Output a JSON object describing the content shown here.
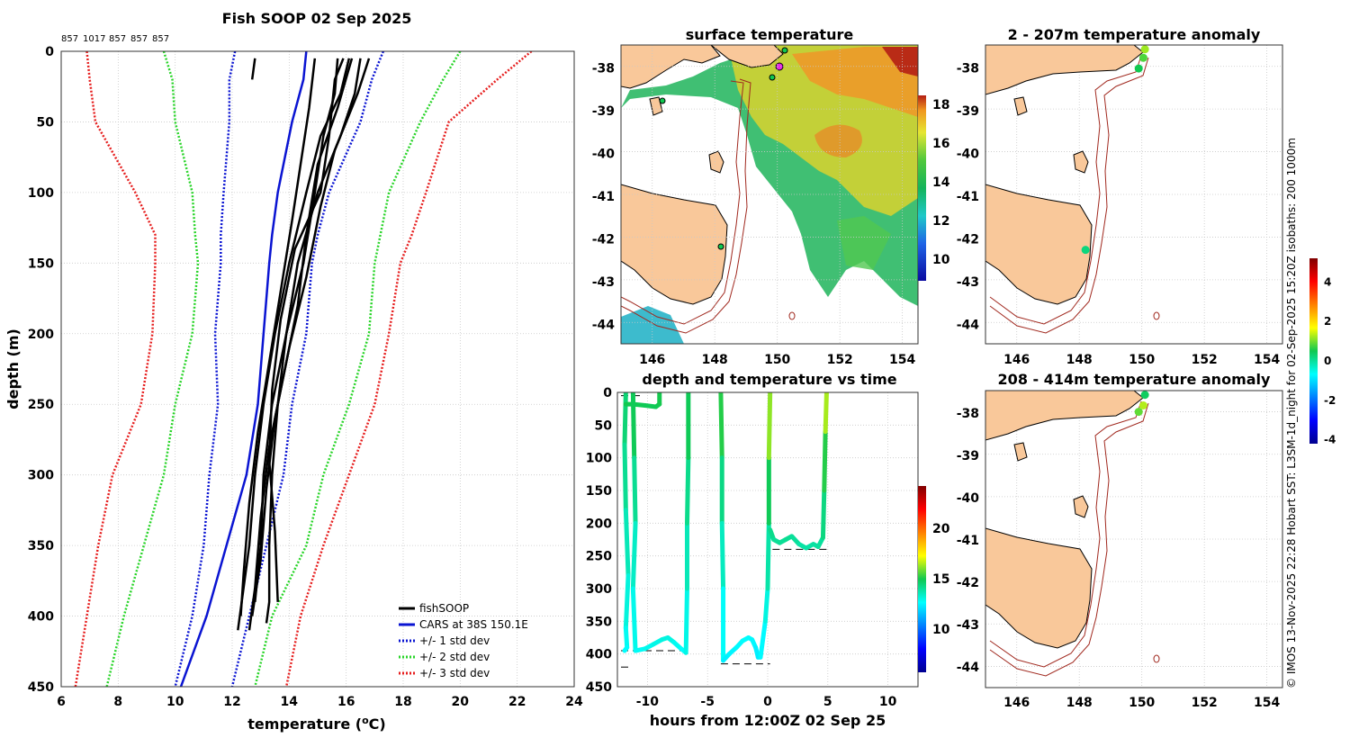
{
  "figure": {
    "title": "Fish SOOP 02 Sep 2025",
    "credit": "© IMOS 13-Nov-2025 22:28 Hobart SST: L3SM-1d_night for 02-Sep-2025 15:20Z isobaths: 200  1000m",
    "colors": {
      "land": "#f9c89a",
      "isobath": "#a0281e",
      "grid": "#c8c8c8"
    }
  },
  "chart_data": [
    {
      "id": "profile",
      "type": "line",
      "title": "Fish SOOP 02 Sep 2025",
      "xlabel": "temperature (°C)",
      "xlabel_main": "temperature (",
      "xlabel_sup": "o",
      "xlabel_end": "C)",
      "ylabel": "depth (m)",
      "xlim": [
        6,
        24
      ],
      "ylim": [
        450,
        0
      ],
      "xticks": [
        "6",
        "8",
        "10",
        "12",
        "14",
        "16",
        "18",
        "20",
        "22",
        "24"
      ],
      "yticks": [
        "0",
        "50",
        "100",
        "150",
        "200",
        "250",
        "300",
        "350",
        "400",
        "450"
      ],
      "top_labels": [
        "857",
        "1017",
        "857",
        "857",
        "857"
      ],
      "depth_grid": [
        0,
        20,
        50,
        100,
        130,
        150,
        200,
        250,
        300,
        350,
        400,
        450
      ],
      "cars": {
        "name": "CARS at 38S 150.1E",
        "color": "#0a14d2",
        "temps": [
          14.6,
          14.5,
          14.1,
          13.6,
          13.4,
          13.3,
          13.1,
          12.9,
          12.5,
          11.8,
          11.1,
          10.2
        ]
      },
      "std_bands": [
        {
          "name": "+/- 1 std dev",
          "color": "#0a14d2",
          "left": [
            12.1,
            11.9,
            11.9,
            11.7,
            11.6,
            11.6,
            11.4,
            11.5,
            11.2,
            11.0,
            10.6,
            10.0
          ],
          "right": [
            17.3,
            16.9,
            16.5,
            15.4,
            15.0,
            14.8,
            14.6,
            14.1,
            13.8,
            13.2,
            12.6,
            12.0
          ]
        },
        {
          "name": "+/- 2 std dev",
          "color": "#28d428",
          "left": [
            9.6,
            9.9,
            10.0,
            10.6,
            10.7,
            10.8,
            10.6,
            10.0,
            9.6,
            8.9,
            8.2,
            7.6
          ],
          "right": [
            20.0,
            19.4,
            18.6,
            17.5,
            17.2,
            17.0,
            16.8,
            16.1,
            15.2,
            14.6,
            13.4,
            12.8
          ]
        },
        {
          "name": "+/- 3 std dev",
          "color": "#e61e1e",
          "left": [
            6.9,
            7.0,
            7.2,
            8.6,
            9.3,
            9.3,
            9.2,
            8.8,
            7.8,
            7.3,
            6.9,
            6.5
          ],
          "right": [
            22.5,
            21.3,
            19.6,
            18.8,
            18.3,
            17.9,
            17.5,
            17.0,
            16.1,
            15.2,
            14.4,
            13.9
          ]
        }
      ],
      "profiles": [
        {
          "name": "fishSOOP",
          "depths": [
            5,
            30,
            60,
            100,
            150,
            200,
            250,
            300,
            350,
            390,
            405
          ],
          "temps": [
            16.5,
            16.3,
            15.8,
            15.0,
            14.3,
            13.9,
            13.6,
            13.4,
            13.3,
            13.3,
            13.2
          ]
        },
        {
          "depths": [
            5,
            30,
            60,
            100,
            150,
            200,
            250,
            300,
            350,
            395,
            410
          ],
          "temps": [
            16.1,
            15.8,
            15.1,
            14.6,
            14.0,
            13.5,
            13.1,
            12.8,
            12.6,
            12.3,
            12.2
          ]
        },
        {
          "depths": [
            5,
            30,
            60,
            100,
            150,
            200,
            250,
            300,
            350,
            390
          ],
          "temps": [
            15.7,
            15.6,
            15.2,
            14.9,
            14.5,
            13.9,
            13.4,
            13.1,
            13.0,
            12.8
          ]
        },
        {
          "depths": [
            5,
            40,
            80,
            120,
            170,
            220,
            270,
            320,
            370,
            400
          ],
          "temps": [
            14.9,
            14.7,
            14.4,
            14.1,
            13.7,
            13.3,
            12.9,
            12.6,
            12.4,
            12.3
          ]
        },
        {
          "depths": [
            5,
            30,
            70,
            110,
            160,
            210,
            260,
            310,
            360,
            400
          ],
          "temps": [
            16.8,
            16.4,
            15.6,
            15.1,
            14.6,
            14.0,
            13.5,
            13.2,
            13.0,
            12.7
          ]
        },
        {
          "depths": [
            5,
            40,
            80,
            130,
            180,
            230,
            280,
            330,
            380,
            410
          ],
          "temps": [
            16.2,
            15.7,
            15.0,
            14.6,
            14.3,
            13.8,
            13.3,
            13.0,
            12.8,
            12.6
          ]
        },
        {
          "depths": [
            5,
            20,
            60,
            100,
            140,
            190,
            240,
            290,
            340,
            390
          ],
          "temps": [
            15.9,
            15.6,
            15.4,
            15.1,
            14.2,
            13.7,
            13.4,
            13.3,
            13.5,
            13.6
          ]
        },
        {
          "depths": [
            5,
            20
          ],
          "temps": [
            12.8,
            12.7
          ]
        }
      ],
      "legend": [
        {
          "label": "fishSOOP",
          "color": "#000000",
          "dash": false
        },
        {
          "label": "CARS at 38S 150.1E",
          "color": "#0a14d2",
          "dash": false
        },
        {
          "label": "+/- 1 std dev",
          "color": "#0a14d2",
          "dash": true
        },
        {
          "label": "+/- 2 std dev",
          "color": "#28d428",
          "dash": true
        },
        {
          "label": "+/- 3 std dev",
          "color": "#e61e1e",
          "dash": true
        }
      ]
    },
    {
      "id": "sst",
      "type": "heatmap",
      "title": "surface temperature",
      "xlim": [
        145,
        154.5
      ],
      "ylim": [
        -44.5,
        -37.5
      ],
      "xticks": [
        "146",
        "148",
        "150",
        "152",
        "154"
      ],
      "yticks": [
        "-38",
        "-39",
        "-40",
        "-41",
        "-42",
        "-43",
        "-44"
      ],
      "colorbar": {
        "min": 9,
        "max": 18.5,
        "ticks": [
          "10",
          "12",
          "14",
          "16",
          "18"
        ]
      }
    },
    {
      "id": "depth_time",
      "type": "scatter",
      "title": "depth and temperature vs time",
      "xlabel": "hours from 12:00Z 02 Sep 25",
      "xlim": [
        -12.5,
        12.5
      ],
      "ylim": [
        450,
        0
      ],
      "xticks": [
        "-10",
        "-5",
        "0",
        "5",
        "10"
      ],
      "yticks": [
        "0",
        "50",
        "100",
        "150",
        "200",
        "250",
        "300",
        "350",
        "400",
        "450"
      ],
      "colorbar": {
        "min": 6,
        "max": 25,
        "ticks": [
          "10",
          "15",
          "20"
        ]
      },
      "casts": [
        {
          "times": [
            -11.8,
            -11.9,
            -11.8,
            -11.6,
            -11.8,
            -11.7,
            -11.9
          ],
          "depths": [
            0,
            80,
            180,
            280,
            360,
            390,
            395
          ],
          "temps": [
            15.2,
            14.8,
            14.4,
            13.8,
            13.4,
            13.2,
            13.1
          ]
        },
        {
          "times": [
            -11.8,
            -11.2,
            -10.2,
            -9.3,
            -9.0,
            -9.0
          ],
          "depths": [
            18,
            18,
            20,
            22,
            18,
            0
          ],
          "temps": [
            15.5,
            15.5,
            15.4,
            15.4,
            15.5,
            15.6
          ]
        },
        {
          "times": [
            -11.2,
            -11.1,
            -11.0,
            -11.2,
            -11.0
          ],
          "depths": [
            0,
            100,
            200,
            300,
            395
          ],
          "temps": [
            15.8,
            15.0,
            14.2,
            13.6,
            13.2
          ]
        },
        {
          "times": [
            -11.0,
            -10.2,
            -9.5,
            -8.8,
            -8.3,
            -7.8,
            -7.2,
            -6.8
          ],
          "depths": [
            395,
            392,
            385,
            378,
            375,
            382,
            392,
            398
          ],
          "temps": [
            13.2,
            13.3,
            13.4,
            13.5,
            13.6,
            13.4,
            13.2,
            13.1
          ]
        },
        {
          "times": [
            -6.8,
            -6.7,
            -6.7,
            -6.6,
            -6.6
          ],
          "depths": [
            398,
            300,
            200,
            100,
            0
          ],
          "temps": [
            13.1,
            13.8,
            14.4,
            15.0,
            15.8
          ]
        },
        {
          "times": [
            -3.9,
            -3.8,
            -3.8,
            -3.7,
            -3.7
          ],
          "depths": [
            0,
            100,
            200,
            300,
            410
          ],
          "temps": [
            16.2,
            15.2,
            14.4,
            13.6,
            12.8
          ]
        },
        {
          "times": [
            -3.7,
            -3.2,
            -2.6,
            -2.1,
            -1.6,
            -1.3,
            -1.0,
            -0.8,
            -0.6
          ],
          "depths": [
            410,
            400,
            390,
            380,
            375,
            378,
            390,
            405,
            405
          ],
          "temps": [
            12.8,
            12.9,
            13.0,
            13.1,
            13.2,
            13.1,
            12.9,
            12.8,
            12.8
          ]
        },
        {
          "times": [
            -0.6,
            -0.2,
            0.0,
            0.1,
            0.1,
            0.2
          ],
          "depths": [
            405,
            350,
            300,
            200,
            100,
            0
          ],
          "temps": [
            12.8,
            13.3,
            13.8,
            14.8,
            16.0,
            17.5
          ]
        },
        {
          "times": [
            0.2,
            0.5,
            1.0,
            1.5,
            2.0,
            2.6,
            3.2,
            3.8,
            4.2,
            4.6
          ],
          "depths": [
            210,
            225,
            230,
            225,
            220,
            232,
            238,
            232,
            236,
            222
          ],
          "temps": [
            14.8,
            14.6,
            14.5,
            14.6,
            14.6,
            14.4,
            14.3,
            14.4,
            14.4,
            14.5
          ]
        },
        {
          "times": [
            4.6,
            4.7,
            4.8,
            4.9
          ],
          "depths": [
            222,
            150,
            60,
            0
          ],
          "temps": [
            14.5,
            15.2,
            16.2,
            17.8
          ]
        }
      ],
      "bottom_markers": [
        {
          "depth": 5,
          "t0": -12.2,
          "t1": -10.6
        },
        {
          "depth": 395,
          "t0": -12.2,
          "t1": -6.8
        },
        {
          "depth": 420,
          "t0": -12.2,
          "t1": -11.3
        },
        {
          "depth": 415,
          "t0": -3.9,
          "t1": 0.2
        },
        {
          "depth": 240,
          "t0": 0.4,
          "t1": 5.0
        }
      ]
    },
    {
      "id": "anom_shallow",
      "type": "scatter",
      "title": "2 - 207m temperature anomaly",
      "xlim": [
        145,
        154.5
      ],
      "ylim": [
        -44.5,
        -37.5
      ],
      "xticks": [
        "146",
        "148",
        "150",
        "152",
        "154"
      ],
      "yticks": [
        "-38",
        "-39",
        "-40",
        "-41",
        "-42",
        "-43",
        "-44"
      ],
      "points": [
        {
          "lon": 150.1,
          "lat": -37.6,
          "anom": 1.2
        },
        {
          "lon": 150.05,
          "lat": -37.8,
          "anom": 0.8
        },
        {
          "lon": 149.9,
          "lat": -38.05,
          "anom": 0.5
        },
        {
          "lon": 148.2,
          "lat": -42.3,
          "anom": 0.2
        }
      ]
    },
    {
      "id": "anom_deep",
      "type": "scatter",
      "title": "208 - 414m temperature anomaly",
      "xlim": [
        145,
        154.5
      ],
      "ylim": [
        -44.5,
        -37.5
      ],
      "xticks": [
        "146",
        "148",
        "150",
        "152",
        "154"
      ],
      "yticks": [
        "-38",
        "-39",
        "-40",
        "-41",
        "-42",
        "-43",
        "-44"
      ],
      "points": [
        {
          "lon": 150.1,
          "lat": -37.6,
          "anom": 0.4
        },
        {
          "lon": 150.05,
          "lat": -37.85,
          "anom": 1.3
        },
        {
          "lon": 149.9,
          "lat": -38.0,
          "anom": 0.9
        }
      ],
      "colorbar": {
        "min": -4.2,
        "max": 5.2,
        "ticks": [
          "4",
          "2",
          "0",
          "-2",
          "-4"
        ],
        "tick_values": [
          4,
          2,
          0,
          -2,
          -4
        ]
      }
    }
  ]
}
